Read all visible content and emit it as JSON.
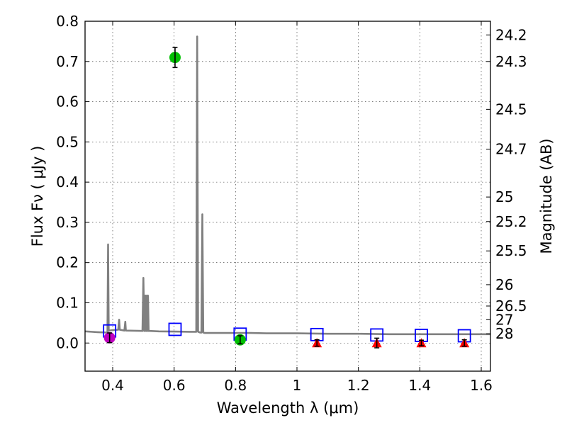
{
  "chart_data": {
    "type": "scatter",
    "title": "",
    "xlabel": "Wavelength  λ (μm)",
    "ylabel": "Flux  Fν  ( μJy )",
    "y2label": "Magnitude (AB)",
    "xlim": [
      0.31,
      1.63
    ],
    "ylim": [
      -0.07,
      0.8
    ],
    "grid": true,
    "xticks": [
      0.4,
      0.6,
      0.8,
      1.0,
      1.2,
      1.4,
      1.6
    ],
    "xtick_labels": [
      "0.4",
      "0.6",
      "0.8",
      "1",
      "1.2",
      "1.4",
      "1.6"
    ],
    "yticks": [
      0.0,
      0.1,
      0.2,
      0.3,
      0.4,
      0.5,
      0.6,
      0.7,
      0.8
    ],
    "ytick_labels": [
      "0.0",
      "0.1",
      "0.2",
      "0.3",
      "0.4",
      "0.5",
      "0.6",
      "0.7",
      "0.8"
    ],
    "y2ticks": [
      {
        "flux": 0.766,
        "label": "24.2"
      },
      {
        "flux": 0.7,
        "label": "24.3"
      },
      {
        "flux": 0.581,
        "label": "24.5"
      },
      {
        "flux": 0.482,
        "label": "24.7"
      },
      {
        "flux": 0.363,
        "label": "25"
      },
      {
        "flux": 0.302,
        "label": "25.2"
      },
      {
        "flux": 0.229,
        "label": "25.5"
      },
      {
        "flux": 0.145,
        "label": "26"
      },
      {
        "flux": 0.092,
        "label": "26.5"
      },
      {
        "flux": 0.058,
        "label": "27"
      },
      {
        "flux": 0.023,
        "label": "28"
      }
    ],
    "series": [
      {
        "name": "model spectrum",
        "kind": "line",
        "color": "#808080",
        "x": [
          0.31,
          0.35,
          0.383,
          0.385,
          0.387,
          0.389,
          0.4,
          0.418,
          0.421,
          0.423,
          0.438,
          0.441,
          0.443,
          0.497,
          0.5,
          0.503,
          0.505,
          0.506,
          0.508,
          0.51,
          0.512,
          0.513,
          0.515,
          0.517,
          0.52,
          0.55,
          0.65,
          0.672,
          0.675,
          0.678,
          0.685,
          0.689,
          0.692,
          0.695,
          0.7,
          0.75,
          0.8,
          0.85,
          0.9,
          0.95,
          1.0,
          1.1,
          1.2,
          1.3,
          1.4,
          1.5,
          1.63
        ],
        "y": [
          0.029,
          0.027,
          0.026,
          0.245,
          0.03,
          0.031,
          0.032,
          0.033,
          0.058,
          0.033,
          0.031,
          0.053,
          0.031,
          0.03,
          0.162,
          0.03,
          0.118,
          0.03,
          0.118,
          0.03,
          0.118,
          0.03,
          0.118,
          0.03,
          0.03,
          0.029,
          0.028,
          0.028,
          0.762,
          0.028,
          0.026,
          0.026,
          0.32,
          0.026,
          0.025,
          0.025,
          0.025,
          0.025,
          0.024,
          0.024,
          0.024,
          0.023,
          0.023,
          0.022,
          0.022,
          0.022,
          0.022
        ]
      },
      {
        "name": "model photometry",
        "kind": "open_square",
        "color": "#0000ff",
        "x": [
          0.39,
          0.603,
          0.815,
          1.065,
          1.26,
          1.405,
          1.545
        ],
        "y": [
          0.03,
          0.034,
          0.022,
          0.021,
          0.02,
          0.019,
          0.018
        ]
      },
      {
        "name": "detections (green)",
        "kind": "circle",
        "color": "#00c000",
        "x": [
          0.603,
          0.815
        ],
        "y": [
          0.71,
          0.008
        ],
        "yerr": [
          0.025,
          0.01
        ]
      },
      {
        "name": "detection (magenta)",
        "kind": "circle",
        "color": "#c000c0",
        "x": [
          0.39
        ],
        "y": [
          0.013
        ],
        "yerr": [
          0.012
        ]
      },
      {
        "name": "upper limits",
        "kind": "triangle",
        "color": "#ff0000",
        "x": [
          1.065,
          1.26,
          1.405,
          1.545
        ],
        "y": [
          0.0,
          0.0,
          0.0,
          0.0
        ],
        "yerr": [
          0.008,
          0.012,
          0.007,
          0.008
        ]
      }
    ]
  }
}
